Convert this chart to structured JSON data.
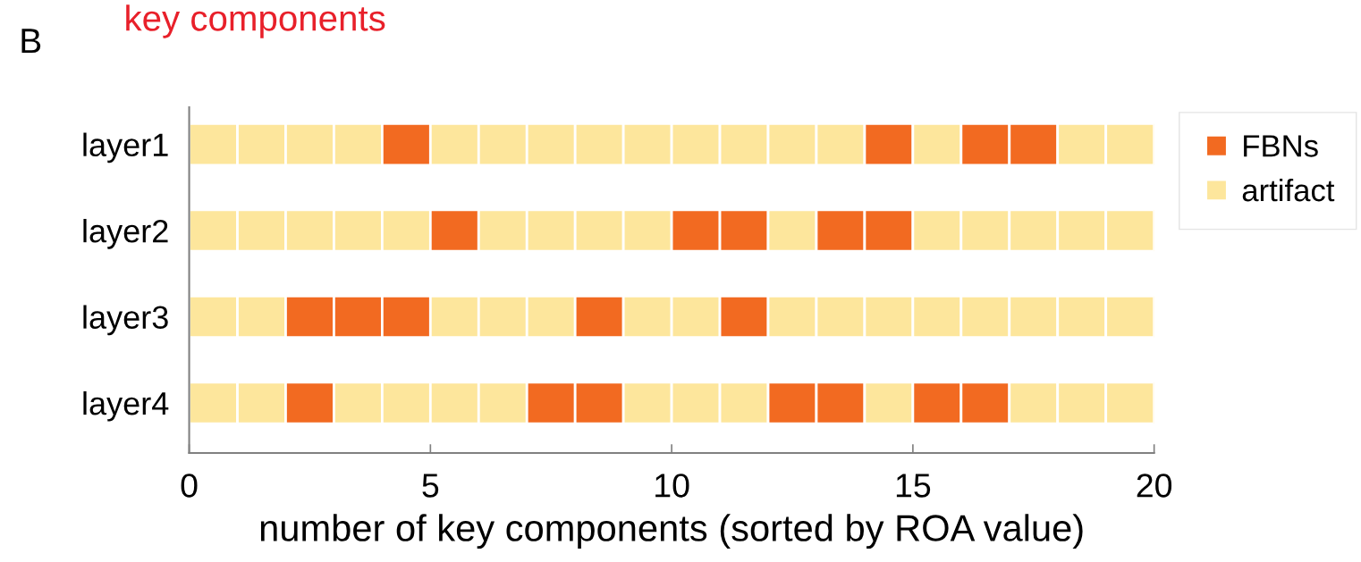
{
  "chart_data": {
    "type": "bar",
    "orientation": "horizontal",
    "stacked": true,
    "annotations": [
      "key components",
      "B"
    ],
    "xlabel": "number of key components (sorted by ROA value)",
    "categories": [
      "layer1",
      "layer2",
      "layer3",
      "layer4"
    ],
    "xlim": [
      0,
      20
    ],
    "xticks": [
      0,
      5,
      10,
      15,
      20
    ],
    "series": [
      {
        "name": "FBNs",
        "color": "#f26a21",
        "values": [
          null,
          null,
          null,
          null
        ]
      },
      {
        "name": "artifact",
        "color": "#fde69c",
        "values": [
          null,
          null,
          null,
          null
        ]
      },
      {
        "values": [
          1,
          1,
          1,
          1
        ],
        "colors": [
          "#fde69c",
          "#fde69c",
          "#fde69c",
          "#fde69c"
        ]
      },
      {
        "values": [
          1,
          1,
          1,
          1
        ],
        "colors": [
          "#fde69c",
          "#fde69c",
          "#fde69c",
          "#fde69c"
        ]
      },
      {
        "values": [
          1,
          1,
          1,
          1
        ],
        "colors": [
          "#fde69c",
          "#fde69c",
          "#f26a21",
          "#f26a21"
        ]
      },
      {
        "values": [
          1,
          1,
          1,
          1
        ],
        "colors": [
          "#fde69c",
          "#fde69c",
          "#f26a21",
          "#fde69c"
        ]
      },
      {
        "values": [
          1,
          1,
          1,
          1
        ],
        "colors": [
          "#f26a21",
          "#fde69c",
          "#f26a21",
          "#fde69c"
        ]
      },
      {
        "values": [
          1,
          1,
          1,
          1
        ],
        "colors": [
          "#fde69c",
          "#f26a21",
          "#fde69c",
          "#fde69c"
        ]
      },
      {
        "values": [
          1,
          1,
          1,
          1
        ],
        "colors": [
          "#fde69c",
          "#fde69c",
          "#fde69c",
          "#fde69c"
        ]
      },
      {
        "values": [
          1,
          1,
          1,
          1
        ],
        "colors": [
          "#fde69c",
          "#fde69c",
          "#fde69c",
          "#f26a21"
        ]
      },
      {
        "values": [
          1,
          1,
          1,
          1
        ],
        "colors": [
          "#fde69c",
          "#fde69c",
          "#f26a21",
          "#f26a21"
        ]
      },
      {
        "values": [
          1,
          1,
          1,
          1
        ],
        "colors": [
          "#fde69c",
          "#fde69c",
          "#fde69c",
          "#fde69c"
        ]
      },
      {
        "values": [
          1,
          1,
          1,
          1
        ],
        "colors": [
          "#fde69c",
          "#f26a21",
          "#fde69c",
          "#fde69c"
        ]
      },
      {
        "values": [
          1,
          1,
          1,
          1
        ],
        "colors": [
          "#fde69c",
          "#f26a21",
          "#f26a21",
          "#fde69c"
        ]
      },
      {
        "values": [
          1,
          1,
          1,
          1
        ],
        "colors": [
          "#fde69c",
          "#fde69c",
          "#fde69c",
          "#f26a21"
        ]
      },
      {
        "values": [
          1,
          1,
          1,
          1
        ],
        "colors": [
          "#fde69c",
          "#f26a21",
          "#fde69c",
          "#f26a21"
        ]
      },
      {
        "values": [
          1,
          1,
          1,
          1
        ],
        "colors": [
          "#f26a21",
          "#f26a21",
          "#fde69c",
          "#fde69c"
        ]
      },
      {
        "values": [
          1,
          1,
          1,
          1
        ],
        "colors": [
          "#fde69c",
          "#fde69c",
          "#fde69c",
          "#f26a21"
        ]
      },
      {
        "values": [
          1,
          1,
          1,
          1
        ],
        "colors": [
          "#f26a21",
          "#fde69c",
          "#fde69c",
          "#f26a21"
        ]
      },
      {
        "values": [
          1,
          1,
          1,
          1
        ],
        "colors": [
          "#f26a21",
          "#fde69c",
          "#fde69c",
          "#fde69c"
        ]
      },
      {
        "values": [
          1,
          1,
          1,
          1
        ],
        "colors": [
          "#fde69c",
          "#fde69c",
          "#fde69c",
          "#fde69c"
        ]
      },
      {
        "values": [
          1,
          1,
          1,
          1
        ],
        "colors": [
          "#fde69c",
          "#fde69c",
          "#fde69c",
          "#fde69c"
        ]
      }
    ],
    "legend": "top right",
    "marker": "square"
  }
}
